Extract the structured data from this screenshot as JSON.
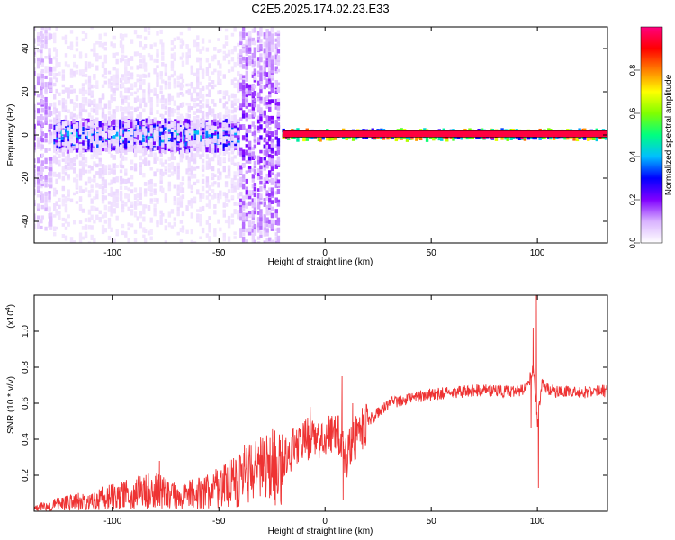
{
  "chart_data": [
    {
      "type": "heatmap",
      "title": "C2E5.2025.174.02.23.E33",
      "xlabel": "Height of straight line (km)",
      "ylabel": "Frequency (Hz)",
      "xlim": [
        -137,
        133
      ],
      "ylim": [
        -50,
        50
      ],
      "xticks": [
        -100,
        -50,
        0,
        50,
        100
      ],
      "yticks": [
        -40,
        -20,
        0,
        20,
        40
      ],
      "colorbar": {
        "label": "Normalized spectral amplitude",
        "range": [
          0,
          1
        ],
        "ticks": [
          "0.0",
          "0.2",
          "0.4",
          "0.6",
          "0.8"
        ],
        "colors": [
          "#ffffff",
          "#d9b3ff",
          "#8000ff",
          "#0000ff",
          "#00bfff",
          "#00ff80",
          "#80ff00",
          "#ffff00",
          "#ff8000",
          "#ff0000",
          "#ff0080"
        ]
      },
      "bands": [
        {
          "x": [
            -137,
            -128
          ],
          "center": 5,
          "halfwidth": 48,
          "amplitude": 0.12
        },
        {
          "x": [
            -128,
            -40
          ],
          "center": 0,
          "halfwidth": 7,
          "amplitude": 0.35
        },
        {
          "x": [
            -128,
            -40
          ],
          "center": 0,
          "halfwidth": 50,
          "amplitude": 0.05
        },
        {
          "x": [
            -40,
            -21
          ],
          "center": 0,
          "halfwidth": 50,
          "amplitude": 0.18
        },
        {
          "x": [
            -20,
            133
          ],
          "center": 0.5,
          "halfwidth": 2,
          "amplitude": 0.9
        }
      ]
    },
    {
      "type": "line",
      "xlabel": "Height of straight line (km)",
      "ylabel": "SNR (10 * v/v)",
      "yscale_label": "(x10",
      "yscale_exp": "4",
      "ylabel_suffix": ")",
      "xlim": [
        -137,
        133
      ],
      "ylim": [
        0,
        1.2
      ],
      "xticks": [
        -100,
        -50,
        0,
        50,
        100
      ],
      "yticks": [
        0.2,
        0.4,
        0.6,
        0.8,
        1.0
      ],
      "ytick_labels": [
        "0.2",
        "0.4",
        "0.6",
        "0.8",
        "1.0"
      ],
      "series": [
        {
          "color": "#ee3333",
          "x": [
            -137,
            -120,
            -100,
            -80,
            -70,
            -60,
            -50,
            -40,
            -30,
            -20,
            -15,
            -10,
            -5,
            0,
            5,
            10,
            15,
            20,
            25,
            30,
            40,
            50,
            60,
            70,
            80,
            90,
            95,
            98,
            100,
            102,
            105,
            110,
            120,
            133
          ],
          "y": [
            0.02,
            0.05,
            0.08,
            0.12,
            0.08,
            0.1,
            0.13,
            0.18,
            0.22,
            0.26,
            0.35,
            0.42,
            0.38,
            0.4,
            0.45,
            0.3,
            0.42,
            0.5,
            0.55,
            0.6,
            0.63,
            0.65,
            0.66,
            0.67,
            0.67,
            0.66,
            0.68,
            0.8,
            0.5,
            0.7,
            0.68,
            0.66,
            0.66,
            0.67
          ],
          "spikes": [
            {
              "x": -78,
              "y": 0.28
            },
            {
              "x": -38,
              "y": 0.37
            },
            {
              "x": -7,
              "y": 0.58
            },
            {
              "x": 8,
              "y": 0.75
            },
            {
              "x": 8.5,
              "y": 0.06
            },
            {
              "x": 13,
              "y": 0.6
            },
            {
              "x": 98,
              "y": 1.02
            },
            {
              "x": 99.5,
              "y": 1.2
            },
            {
              "x": 100.5,
              "y": 0.13
            },
            {
              "x": 97,
              "y": 0.46
            }
          ]
        }
      ]
    }
  ]
}
